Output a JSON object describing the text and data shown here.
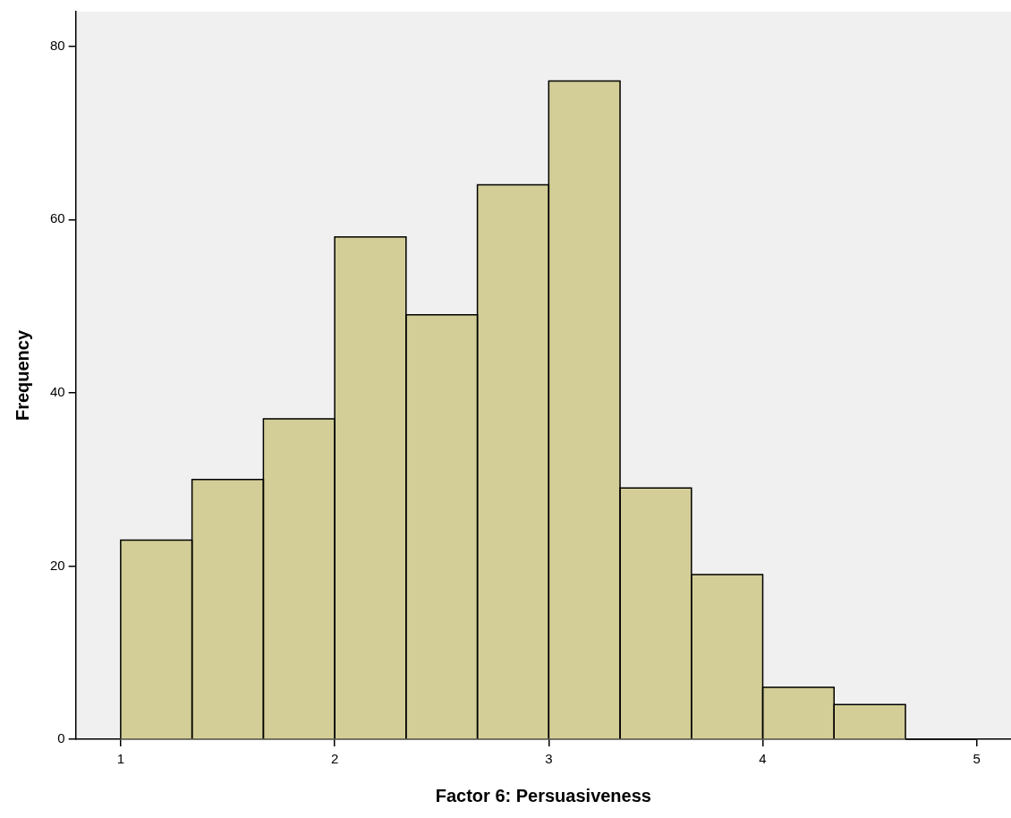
{
  "chart_data": {
    "type": "histogram",
    "xlabel": "Factor 6: Persuasiveness",
    "ylabel": "Frequency",
    "bins": [
      1,
      1.333,
      1.667,
      2,
      2.333,
      2.667,
      3,
      3.333,
      3.667,
      4,
      4.333,
      4.667,
      5
    ],
    "values": [
      23,
      30,
      37,
      58,
      49,
      64,
      76,
      29,
      19,
      6,
      4,
      0
    ],
    "color": "#d3ce97",
    "xlim": [
      0.79,
      5.16
    ],
    "xticks": [
      1,
      2,
      3,
      4,
      5
    ],
    "ylim": [
      0,
      84
    ],
    "yticks": [
      0,
      20,
      40,
      60,
      80
    ],
    "grid": false,
    "legend": false
  }
}
